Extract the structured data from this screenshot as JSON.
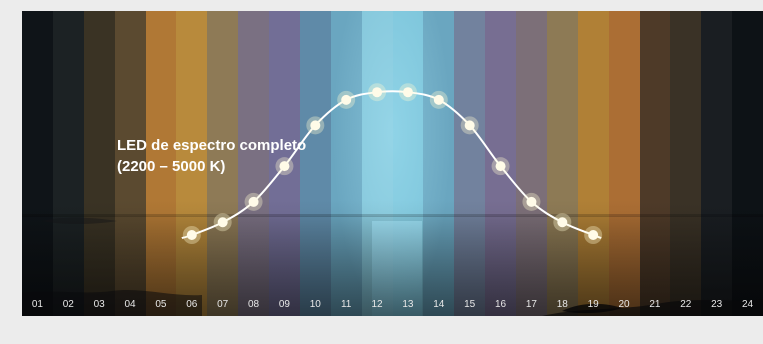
{
  "chart_data": {
    "type": "line",
    "annotation": [
      "LED de espectro completo",
      "(2200 – 5000 K)"
    ],
    "categories": [
      "01",
      "02",
      "03",
      "04",
      "05",
      "06",
      "07",
      "08",
      "09",
      "10",
      "11",
      "12",
      "13",
      "14",
      "15",
      "16",
      "17",
      "18",
      "19",
      "20",
      "21",
      "22",
      "23",
      "24"
    ],
    "x": [
      "06",
      "07",
      "08",
      "09",
      "10",
      "11",
      "12",
      "13",
      "14",
      "15",
      "16",
      "17",
      "18",
      "19"
    ],
    "values": [
      2200,
      2450,
      2850,
      3550,
      4350,
      4850,
      5000,
      5000,
      4850,
      4350,
      3550,
      2850,
      2450,
      2200
    ],
    "ylim": [
      1200,
      6200
    ],
    "stripe_colors": [
      "#0f1418",
      "#1c2224",
      "#3a3324",
      "#5b4a30",
      "#b07835",
      "#b88a3c",
      "#8e7a56",
      "#7a7082",
      "#726e96",
      "#5f8aa8",
      "#6aa6c0",
      "#84c6da",
      "#7cc4da",
      "#6aa6c0",
      "#72829e",
      "#776e92",
      "#7c6f78",
      "#8d7a55",
      "#b08036",
      "#ab6e34",
      "#4e3a28",
      "#3a3226",
      "#1a1e22",
      "#0d1216"
    ],
    "grid": false,
    "legend": "none"
  }
}
